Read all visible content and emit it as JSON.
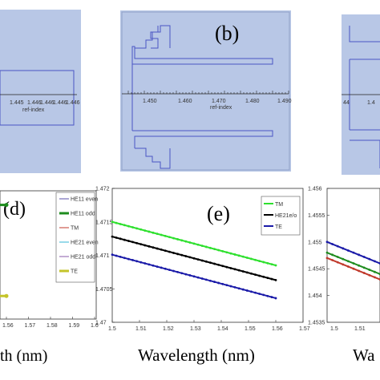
{
  "colors": {
    "panel_bg": "#b8c7e6",
    "plot_bg": "#d7e0f2",
    "mode_line": "#4a55c4"
  },
  "panel_a": {
    "xlabel": "ref-index",
    "ticks": [
      "1.445",
      "1.446",
      "1.446",
      "1.446",
      "1.446"
    ]
  },
  "panel_b": {
    "label": "(b)",
    "xlabel": "ref-index",
    "ticks": [
      "1.450",
      "1.460",
      "1.470",
      "1.480",
      "1.490"
    ]
  },
  "panel_c": {
    "ticks": [
      "44",
      "1.4"
    ]
  },
  "chart_data": [
    {
      "panel": "d",
      "label": "(d)",
      "type": "line",
      "xlabel": "th  (nm)",
      "xticks": [
        "1.56",
        "1.57",
        "1.58",
        "1.59",
        "1.6"
      ],
      "xlim": [
        1.555,
        1.6
      ],
      "legend_position": "top-right",
      "series": [
        {
          "name": "HE11 even",
          "color": "#5a4fa8"
        },
        {
          "name": "HE11 odd",
          "color": "#1e8c1e",
          "x": [
            1.555,
            1.558
          ],
          "y_frac": [
            0.11,
            0.11
          ]
        },
        {
          "name": "TM",
          "color": "#c0392b"
        },
        {
          "name": "HE21 even",
          "color": "#33b5d6"
        },
        {
          "name": "HE21 odd",
          "color": "#8a5aa8"
        },
        {
          "name": "TE",
          "color": "#c4c42a",
          "x": [
            1.555,
            1.558
          ],
          "y_frac": [
            0.82,
            0.82
          ]
        }
      ]
    },
    {
      "panel": "e",
      "label": "(e)",
      "type": "line",
      "xlabel": "Wavelength (nm)",
      "x": [
        1.5,
        1.56
      ],
      "xticks": [
        "1.5",
        "1.51",
        "1.52",
        "1.53",
        "1.54",
        "1.55",
        "1.56",
        "1.57"
      ],
      "yticks": [
        "1.472",
        "1.4715",
        "1.471",
        "1.4705",
        "1.47"
      ],
      "xlim": [
        1.5,
        1.57
      ],
      "ylim": [
        1.47,
        1.472
      ],
      "legend_position": "top-right",
      "series": [
        {
          "name": "TM",
          "color": "#2ee02e",
          "values": [
            1.4715,
            1.47085
          ]
        },
        {
          "name": "HE21e/o",
          "color": "#000000",
          "values": [
            1.47128,
            1.47063
          ]
        },
        {
          "name": "TE",
          "color": "#1a1aa8",
          "values": [
            1.47101,
            1.47036
          ]
        }
      ]
    },
    {
      "panel": "f",
      "type": "line",
      "xlabel": "Wa",
      "xticks": [
        "1.5",
        "1.51"
      ],
      "yticks": [
        "1.456",
        "1.4555",
        "1.455",
        "1.4545",
        "1.454",
        "1.4535"
      ],
      "ylim": [
        1.4535,
        1.456
      ],
      "series": [
        {
          "color": "#1a1aa8",
          "values": [
            1.455,
            1.4546
          ]
        },
        {
          "color": "#1e8c1e",
          "values": [
            1.4548,
            1.4544
          ]
        },
        {
          "color": "#c0392b",
          "values": [
            1.4547,
            1.4543
          ]
        }
      ]
    }
  ]
}
